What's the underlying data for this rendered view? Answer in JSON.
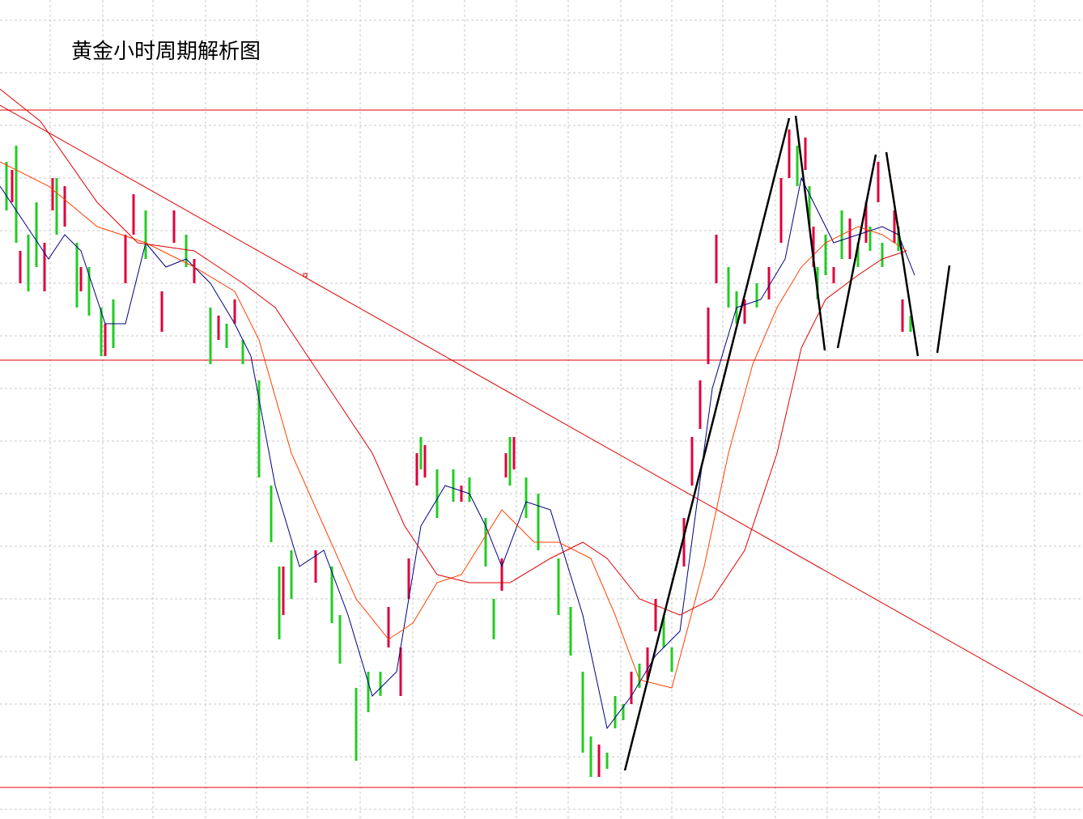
{
  "chart_data": {
    "type": "candlestick",
    "title": "黄金小时周期解析图"
  }
}
